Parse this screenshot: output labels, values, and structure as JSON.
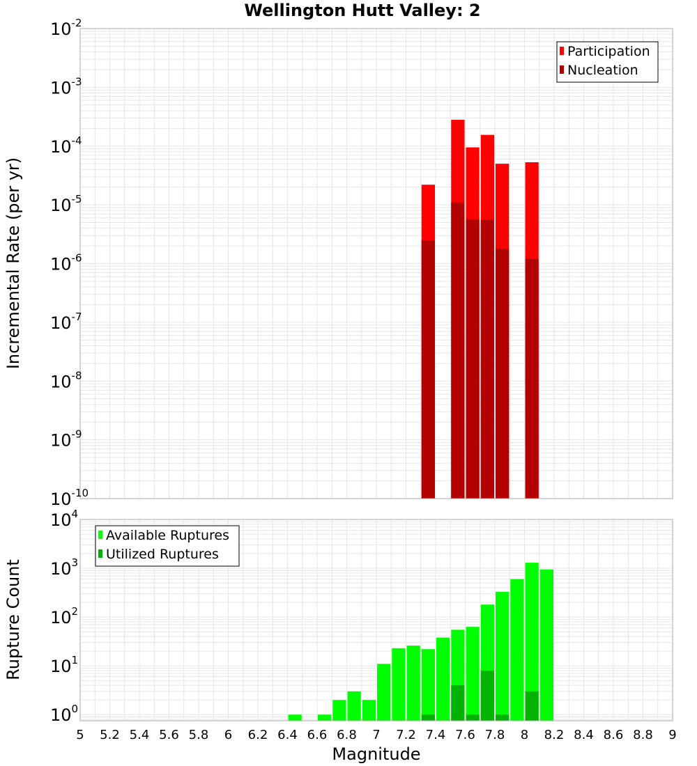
{
  "title": "Wellington Hutt Valley: 2",
  "colors": {
    "participation": "#ff0000",
    "nucleation": "#b30000",
    "available": "#00ff00",
    "utilized": "#00b300",
    "grid": "#e6e6e6",
    "frame": "#aaaaaa"
  },
  "chart_data": [
    {
      "type": "bar",
      "ylabel": "Incremental Rate (per yr)",
      "yscale": "log",
      "ylim": [
        1e-10,
        0.01
      ],
      "xlim": [
        5,
        9
      ],
      "ytick_exponents": [
        "-10",
        "-9",
        "-8",
        "-7",
        "-6",
        "-5",
        "-4",
        "-3",
        "-2"
      ],
      "ytick_base": "10",
      "legend": {
        "position": "top-right",
        "entries": [
          "Participation",
          "Nucleation"
        ]
      },
      "grid": true,
      "series": [
        {
          "name": "Participation",
          "x": [
            7.35,
            7.55,
            7.65,
            7.75,
            7.85,
            8.05
          ],
          "values": [
            2.2e-05,
            0.00028,
            9.5e-05,
            0.000155,
            5e-05,
            5.3e-05
          ]
        },
        {
          "name": "Nucleation",
          "x": [
            7.35,
            7.55,
            7.65,
            7.75,
            7.85,
            8.05
          ],
          "values": [
            2.5e-06,
            1.1e-05,
            5.7e-06,
            5.6e-06,
            1.8e-06,
            1.2e-06
          ]
        }
      ]
    },
    {
      "type": "bar",
      "xlabel": "Magnitude",
      "ylabel": "Rupture Count",
      "yscale": "log",
      "ylim": [
        0.75,
        10000.0
      ],
      "xlim": [
        5,
        9
      ],
      "ytick_exponents": [
        "0",
        "1",
        "2",
        "3",
        "4"
      ],
      "ytick_base": "10",
      "xticks": [
        "5",
        "5.2",
        "5.4",
        "5.6",
        "5.8",
        "6",
        "6.2",
        "6.4",
        "6.6",
        "6.8",
        "7",
        "7.2",
        "7.4",
        "7.6",
        "7.8",
        "8",
        "8.2",
        "8.4",
        "8.6",
        "8.8",
        "9"
      ],
      "legend": {
        "position": "top-left",
        "entries": [
          "Available Ruptures",
          "Utilized Ruptures"
        ]
      },
      "grid": true,
      "series": [
        {
          "name": "Available Ruptures",
          "x": [
            6.45,
            6.65,
            6.75,
            6.85,
            6.95,
            7.05,
            7.15,
            7.25,
            7.35,
            7.45,
            7.55,
            7.65,
            7.75,
            7.85,
            7.95,
            8.05,
            8.15
          ],
          "values": [
            1,
            1,
            2,
            3,
            2,
            11,
            23,
            26,
            22,
            38,
            55,
            63,
            180,
            330,
            600,
            1300,
            950
          ]
        },
        {
          "name": "Utilized Ruptures",
          "x": [
            7.35,
            7.55,
            7.65,
            7.75,
            7.85,
            8.05
          ],
          "values": [
            1,
            4,
            1,
            8,
            1,
            3
          ]
        }
      ]
    }
  ]
}
